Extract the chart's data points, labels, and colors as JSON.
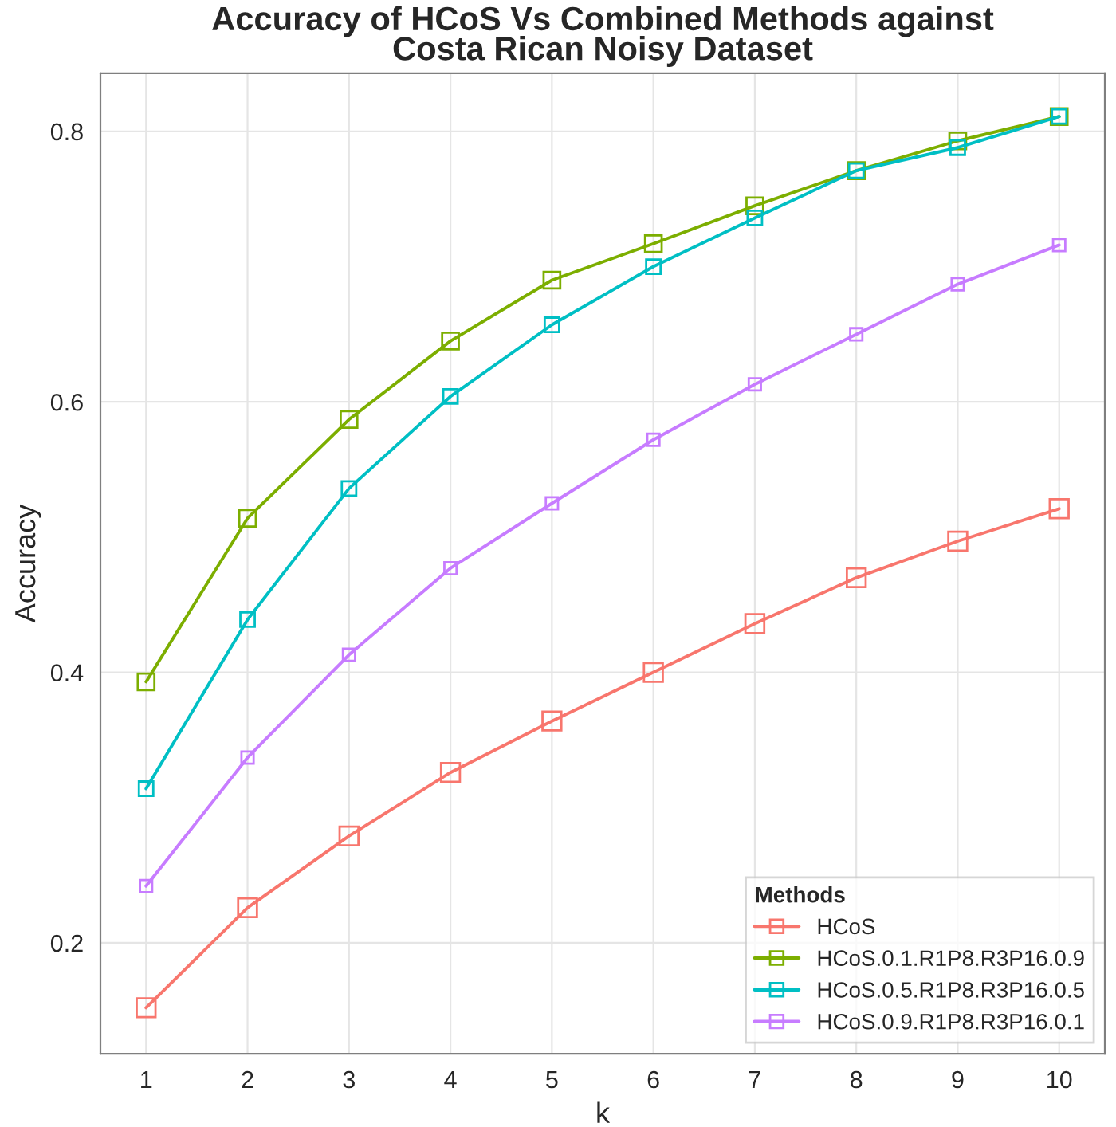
{
  "chart_data": {
    "type": "line",
    "title": "Accuracy of HCoS Vs Combined Methods against\nCosta Rican Noisy Dataset",
    "xlabel": "k",
    "ylabel": "Accuracy",
    "legend_title": "Methods",
    "x": [
      1,
      2,
      3,
      4,
      5,
      6,
      7,
      8,
      9,
      10
    ],
    "series": [
      {
        "name": "HCoS",
        "color": "#f8766d",
        "values": [
          0.152,
          0.226,
          0.279,
          0.326,
          0.364,
          0.4,
          0.436,
          0.47,
          0.497,
          0.521
        ]
      },
      {
        "name": "HCoS.0.1.R1P8.R3P16.0.9",
        "color": "#7cae00",
        "values": [
          0.393,
          0.514,
          0.587,
          0.645,
          0.69,
          0.717,
          0.745,
          0.771,
          0.793,
          0.811
        ]
      },
      {
        "name": "HCoS.0.5.R1P8.R3P16.0.5",
        "color": "#00bfc4",
        "values": [
          0.314,
          0.439,
          0.536,
          0.604,
          0.657,
          0.7,
          0.736,
          0.771,
          0.788,
          0.811
        ]
      },
      {
        "name": "HCoS.0.9.R1P8.R3P16.0.1",
        "color": "#c77cff",
        "values": [
          0.242,
          0.337,
          0.413,
          0.477,
          0.525,
          0.572,
          0.613,
          0.65,
          0.687,
          0.716
        ]
      }
    ],
    "xlim": [
      0.55,
      10.45
    ],
    "ylim": [
      0.118,
      0.843
    ],
    "xticks": [
      1,
      2,
      3,
      4,
      5,
      6,
      7,
      8,
      9,
      10
    ],
    "yticks": [
      {
        "value": 0.2,
        "label": "0.2"
      },
      {
        "value": 0.4,
        "label": "0.4"
      },
      {
        "value": 0.6,
        "label": "0.6"
      },
      {
        "value": 0.8,
        "label": "0.8"
      }
    ],
    "grid": true,
    "legend": "bottom right",
    "marker": "square",
    "line_style": "solid"
  }
}
